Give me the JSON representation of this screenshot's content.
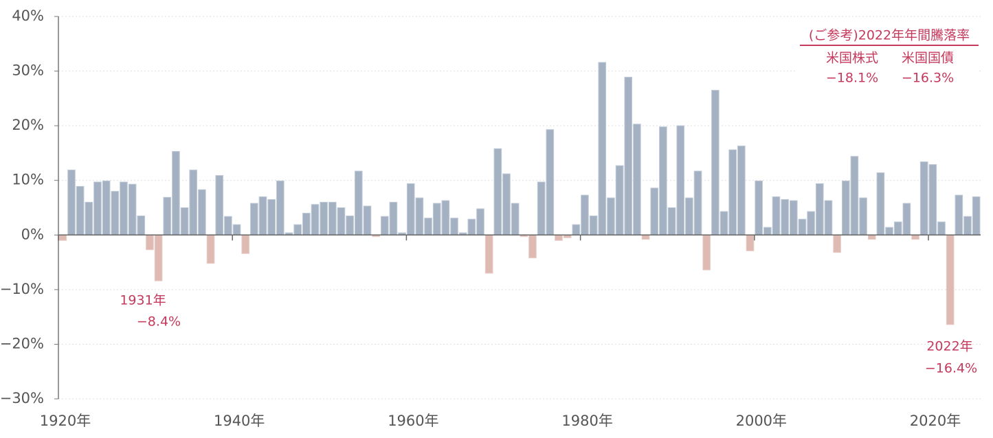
{
  "chart_data": {
    "type": "bar",
    "x": [
      1920,
      1921,
      1922,
      1923,
      1924,
      1925,
      1926,
      1927,
      1928,
      1929,
      1930,
      1931,
      1932,
      1933,
      1934,
      1935,
      1936,
      1937,
      1938,
      1939,
      1940,
      1941,
      1942,
      1943,
      1944,
      1945,
      1946,
      1947,
      1948,
      1949,
      1950,
      1951,
      1952,
      1953,
      1954,
      1955,
      1956,
      1957,
      1958,
      1959,
      1960,
      1961,
      1962,
      1963,
      1964,
      1965,
      1966,
      1967,
      1968,
      1969,
      1970,
      1971,
      1972,
      1973,
      1974,
      1975,
      1976,
      1977,
      1978,
      1979,
      1980,
      1981,
      1982,
      1983,
      1984,
      1985,
      1986,
      1987,
      1988,
      1989,
      1990,
      1991,
      1992,
      1993,
      1994,
      1995,
      1996,
      1997,
      1998,
      1999,
      2000,
      2001,
      2002,
      2003,
      2004,
      2005,
      2006,
      2007,
      2008,
      2009,
      2010,
      2011,
      2012,
      2013,
      2014,
      2015,
      2016,
      2017,
      2018,
      2019,
      2020,
      2021,
      2022,
      2023,
      2024,
      2025
    ],
    "values": [
      -1.0,
      11.9,
      8.9,
      6.0,
      9.7,
      9.9,
      8.0,
      9.7,
      9.3,
      3.5,
      -2.7,
      -8.4,
      6.9,
      15.3,
      5.0,
      11.9,
      8.3,
      -5.2,
      10.9,
      3.4,
      1.9,
      -3.4,
      5.8,
      7.0,
      6.5,
      9.9,
      0.4,
      1.9,
      4.0,
      5.6,
      6.0,
      6.0,
      5.0,
      3.5,
      11.7,
      5.3,
      -0.3,
      3.4,
      6.0,
      0.4,
      9.4,
      6.8,
      3.1,
      5.8,
      6.3,
      3.1,
      0.4,
      2.9,
      4.8,
      -7.0,
      15.8,
      11.2,
      5.8,
      -0.3,
      -4.2,
      9.7,
      19.3,
      -1.0,
      -0.5,
      1.9,
      7.3,
      3.5,
      31.6,
      6.8,
      12.7,
      28.9,
      20.3,
      -0.8,
      8.6,
      19.8,
      5.0,
      20.0,
      6.8,
      11.7,
      -6.4,
      26.5,
      4.3,
      15.6,
      16.3,
      -2.9,
      9.9,
      1.4,
      7.0,
      6.5,
      6.3,
      2.9,
      4.3,
      9.4,
      6.3,
      -3.2,
      9.9,
      14.4,
      6.8,
      -0.8,
      11.4,
      1.4,
      2.4,
      5.8,
      -0.8,
      13.4,
      12.9,
      2.4,
      -16.4,
      7.3,
      3.4,
      7.0
    ],
    "color": "#a3b1c3",
    "negative_color": "#dfbab3",
    "xlim": [
      1920,
      2026
    ],
    "xticks": [
      {
        "value": 1920,
        "label": "1920年"
      },
      {
        "value": 1940,
        "label": "1940年"
      },
      {
        "value": 1960,
        "label": "1960年"
      },
      {
        "value": 1980,
        "label": "1980年"
      },
      {
        "value": 2000,
        "label": "2000年"
      },
      {
        "value": 2020,
        "label": "2020年"
      }
    ],
    "ylim": [
      -30,
      40
    ],
    "yticks": [
      {
        "value": -30,
        "label": "−30%"
      },
      {
        "value": -20,
        "label": "−20%"
      },
      {
        "value": -10,
        "label": "−10%"
      },
      {
        "value": 0,
        "label": "0%"
      },
      {
        "value": 10,
        "label": "10%"
      },
      {
        "value": 20,
        "label": "20%"
      },
      {
        "value": 30,
        "label": "30%"
      },
      {
        "value": 40,
        "label": "40%"
      }
    ],
    "grid": true,
    "annotations": [
      {
        "year": "1931年",
        "value": "−8.4%"
      },
      {
        "year": "2022年",
        "value": "−16.4%"
      }
    ],
    "reference": {
      "title": "(ご参考)2022年年間騰落率",
      "items": [
        {
          "name": "米国株式",
          "value": "−18.1%"
        },
        {
          "name": "米国国債",
          "value": "−16.3%"
        }
      ]
    }
  }
}
